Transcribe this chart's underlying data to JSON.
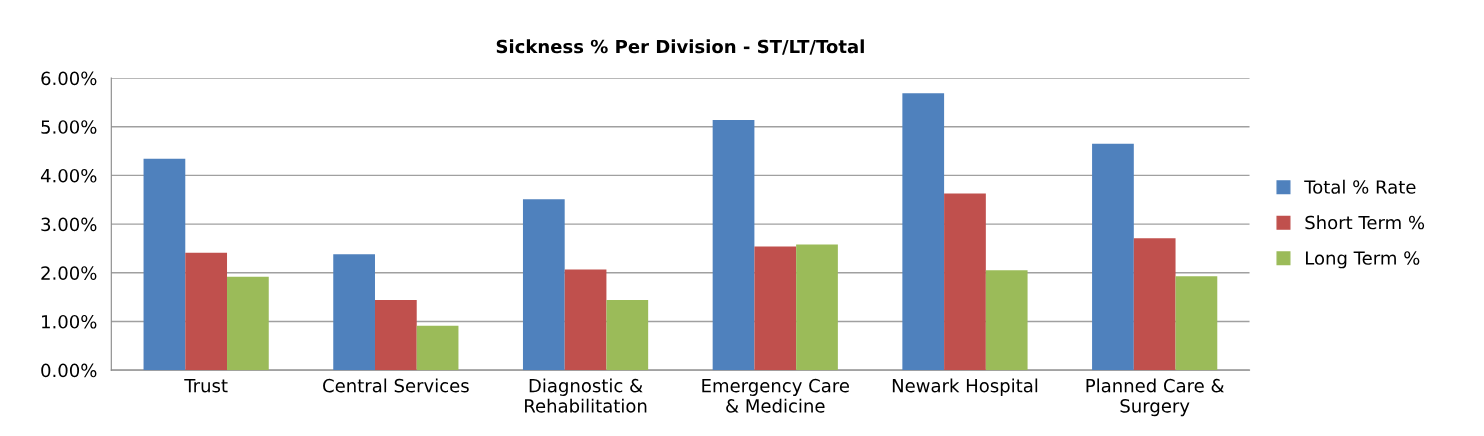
{
  "chart_data": {
    "type": "bar",
    "title": "Sickness % Per Division - ST/LT/Total",
    "categories": [
      "Trust",
      "Central Services",
      "Diagnostic &\nRehabilitation",
      "Emergency Care\n& Medicine",
      "Newark Hospital",
      "Planned Care &\nSurgery"
    ],
    "series": [
      {
        "name": "Total % Rate",
        "color": "#4f81bd",
        "values": [
          4.34,
          2.38,
          3.51,
          5.14,
          5.69,
          4.65
        ]
      },
      {
        "name": "Short Term %",
        "color": "#c0504d",
        "values": [
          2.41,
          1.44,
          2.07,
          2.54,
          3.63,
          2.71
        ]
      },
      {
        "name": "Long Term %",
        "color": "#9bbb59",
        "values": [
          1.92,
          0.91,
          1.44,
          2.58,
          2.05,
          1.93
        ]
      }
    ],
    "ylim": [
      0,
      6
    ],
    "yticks": [
      {
        "value": 0,
        "label": "0.00%"
      },
      {
        "value": 1,
        "label": "1.00%"
      },
      {
        "value": 2,
        "label": "2.00%"
      },
      {
        "value": 3,
        "label": "3.00%"
      },
      {
        "value": 4,
        "label": "4.00%"
      },
      {
        "value": 5,
        "label": "5.00%"
      },
      {
        "value": 6,
        "label": "6.00%"
      }
    ],
    "grid": "y",
    "legend": "right"
  }
}
